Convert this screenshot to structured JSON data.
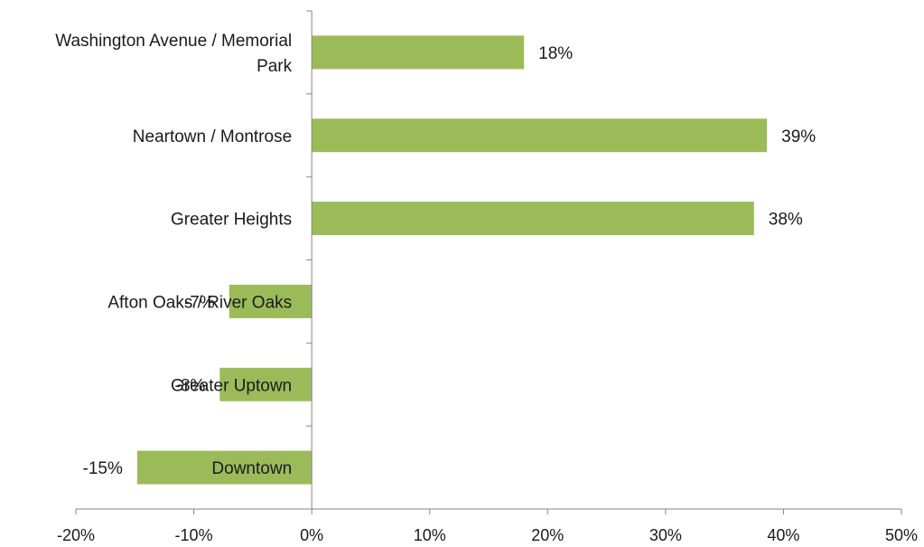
{
  "chart_data": {
    "type": "bar",
    "orientation": "horizontal",
    "title": "",
    "xlabel": "",
    "ylabel": "",
    "categories": [
      [
        "Washington Avenue / Memorial",
        "Park"
      ],
      [
        "Neartown / Montrose"
      ],
      [
        "Greater Heights"
      ],
      [
        "Afton Oaks / River Oaks"
      ],
      [
        "Greater Uptown"
      ],
      [
        "Downtown"
      ]
    ],
    "values": [
      18,
      38.6,
      37.5,
      -7,
      -7.8,
      -14.8
    ],
    "value_labels": [
      "18%",
      "39%",
      "38%",
      "-7%",
      "-8%",
      "-15%"
    ],
    "xlim": [
      -20,
      50
    ],
    "xticks": [
      -20,
      -10,
      0,
      10,
      20,
      30,
      40,
      50
    ],
    "xtick_labels": [
      "-20%",
      "-10%",
      "0%",
      "10%",
      "20%",
      "30%",
      "40%",
      "50%"
    ],
    "bar_color": "#9bbb59",
    "axis_color": "#868686",
    "grid": false,
    "legend": "none"
  }
}
